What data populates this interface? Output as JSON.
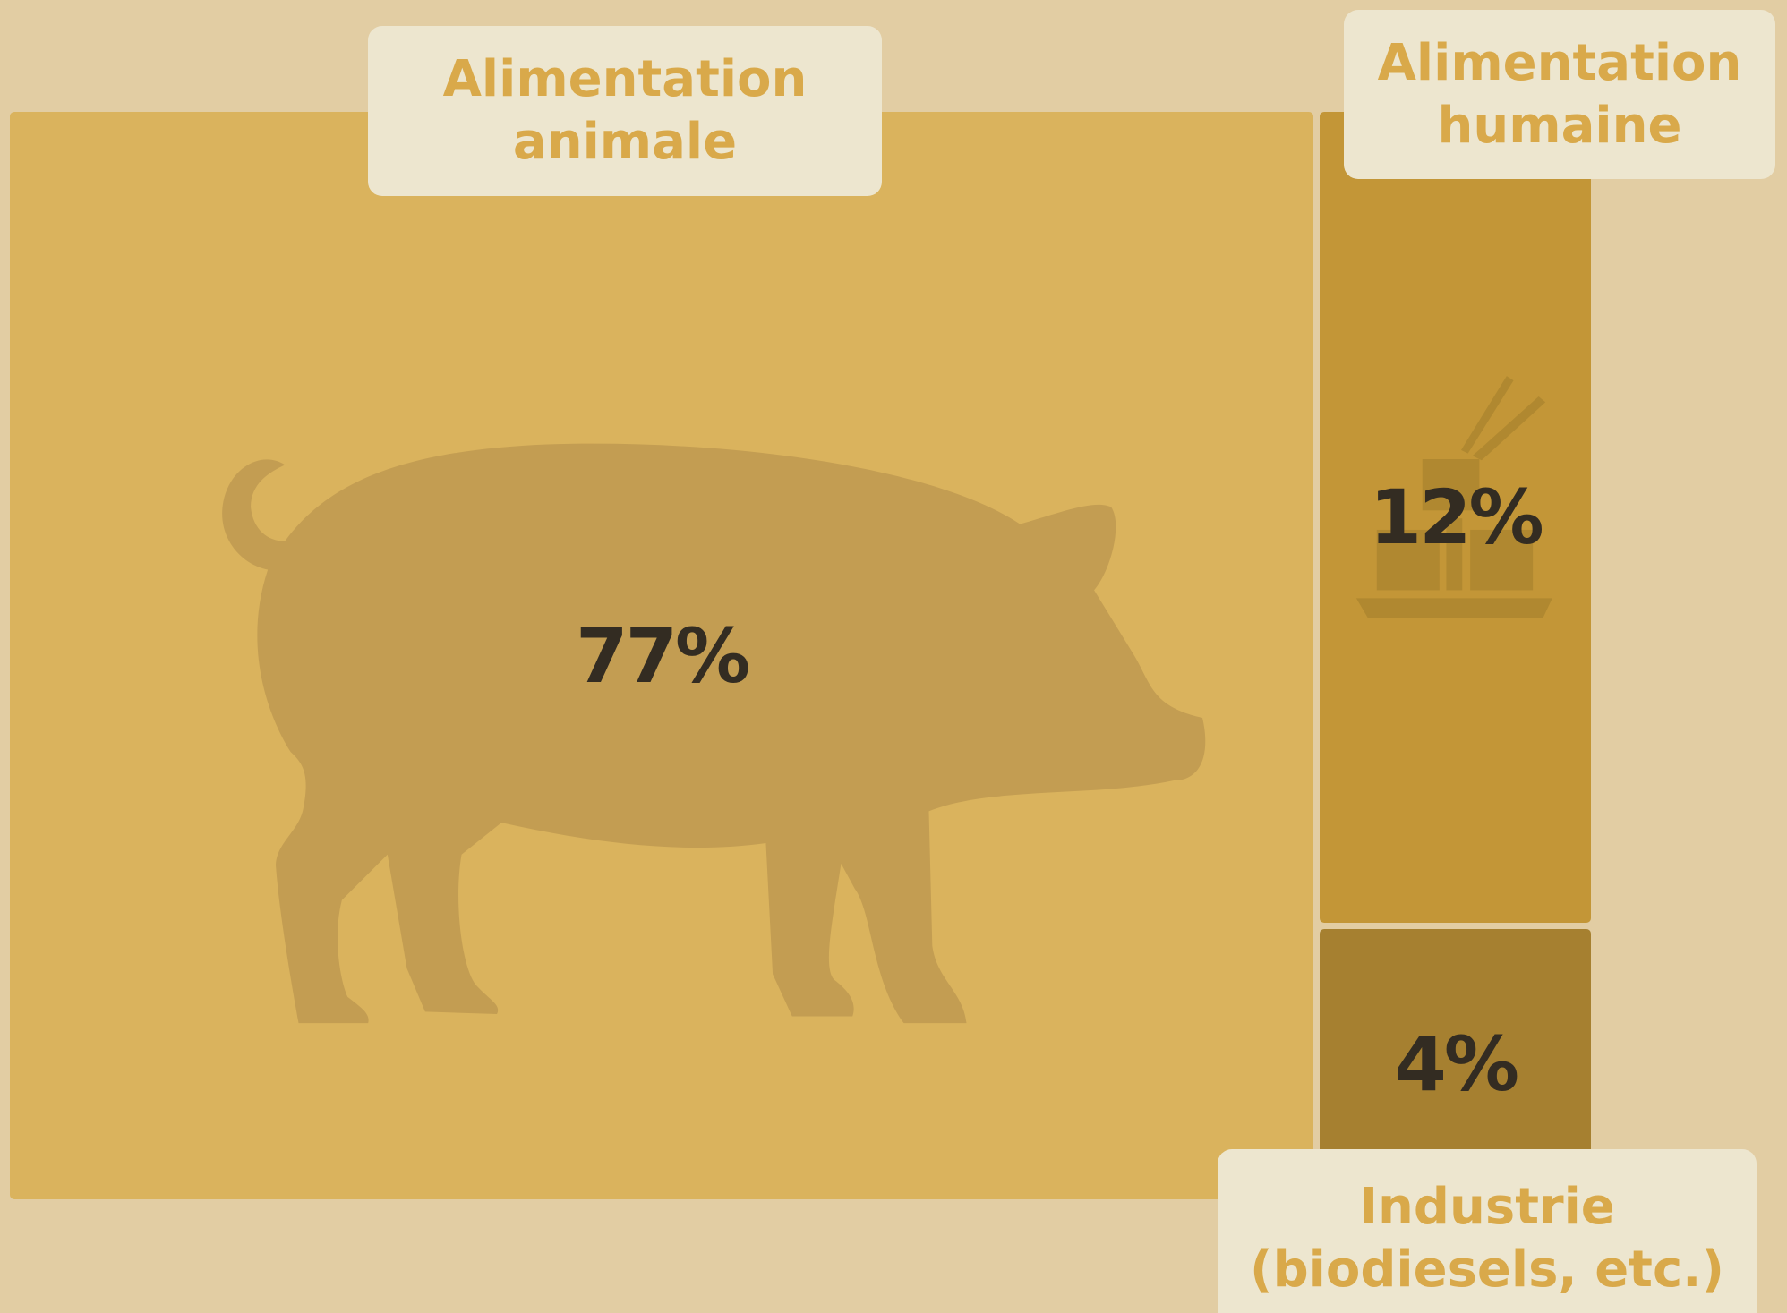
{
  "chart_data": {
    "type": "treemap",
    "categories": [
      "Alimentation animale",
      "Alimentation humaine",
      "Industrie (biodiesels, etc.)"
    ],
    "values": [
      77,
      12,
      4
    ],
    "value_labels": [
      "77%",
      "12%",
      "4%"
    ],
    "colors": [
      "#dab35d",
      "#c39637",
      "#a68030"
    ]
  }
}
